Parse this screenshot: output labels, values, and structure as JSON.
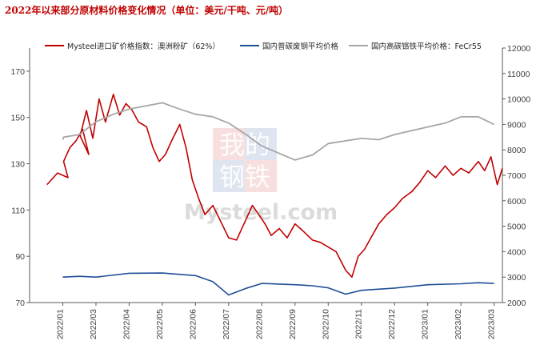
{
  "chart_data": {
    "type": "line",
    "title": "2022年以来部分原材料价格变化情况（单位：美元/干吨、元/吨）",
    "x_ticks": [
      "2022/01",
      "2022/03",
      "2022/04",
      "2022/05",
      "2022/06",
      "2022/07",
      "2022/08",
      "2022/09",
      "2022/10",
      "2022/11",
      "2022/12",
      "2023/01",
      "2023/02",
      "2023/03"
    ],
    "y_left": {
      "range": [
        70,
        180
      ],
      "ticks": [
        70,
        90,
        110,
        130,
        150,
        170
      ]
    },
    "y_right": {
      "range": [
        2000,
        12000
      ],
      "ticks": [
        2000,
        3000,
        4000,
        5000,
        6000,
        7000,
        8000,
        9000,
        10000,
        11000,
        12000
      ]
    },
    "series": [
      {
        "name": "Mysteel进口矿价格指数：澳洲粉矿（62%）",
        "axis": "left",
        "color": "#c00000",
        "points": [
          [
            "2022/01",
            121
          ],
          [
            "2022/01",
            126
          ],
          [
            "2022/01",
            124
          ],
          [
            "2022/02",
            131
          ],
          [
            "2022/02",
            137
          ],
          [
            "2022/02",
            140
          ],
          [
            "2022/02",
            145
          ],
          [
            "2022/02",
            134
          ],
          [
            "2022/03",
            142
          ],
          [
            "2022/03",
            153
          ],
          [
            "2022/03",
            141
          ],
          [
            "2022/03",
            158
          ],
          [
            "2022/03",
            148
          ],
          [
            "2022/04",
            160
          ],
          [
            "2022/04",
            151
          ],
          [
            "2022/04",
            156
          ],
          [
            "2022/04",
            153
          ],
          [
            "2022/04",
            148
          ],
          [
            "2022/05",
            146
          ],
          [
            "2022/05",
            137
          ],
          [
            "2022/05",
            131
          ],
          [
            "2022/05",
            134
          ],
          [
            "2022/05",
            140
          ],
          [
            "2022/06",
            147
          ],
          [
            "2022/06",
            137
          ],
          [
            "2022/06",
            123
          ],
          [
            "2022/06",
            115
          ],
          [
            "2022/06",
            108
          ],
          [
            "2022/07",
            112
          ],
          [
            "2022/07",
            105
          ],
          [
            "2022/07",
            98
          ],
          [
            "2022/07",
            97
          ],
          [
            "2022/08",
            106
          ],
          [
            "2022/08",
            112
          ],
          [
            "2022/08",
            108
          ],
          [
            "2022/08",
            104
          ],
          [
            "2022/08",
            99
          ],
          [
            "2022/09",
            102
          ],
          [
            "2022/09",
            98
          ],
          [
            "2022/09",
            104
          ],
          [
            "2022/09",
            101
          ],
          [
            "2022/10",
            97
          ],
          [
            "2022/10",
            96
          ],
          [
            "2022/10",
            94
          ],
          [
            "2022/10",
            92
          ],
          [
            "2022/11",
            84
          ],
          [
            "2022/11",
            81
          ],
          [
            "2022/11",
            90
          ],
          [
            "2022/11",
            93
          ],
          [
            "2022/11",
            98
          ],
          [
            "2022/12",
            104
          ],
          [
            "2022/12",
            108
          ],
          [
            "2022/12",
            111
          ],
          [
            "2022/12",
            115
          ],
          [
            "2023/01",
            118
          ],
          [
            "2023/01",
            122
          ],
          [
            "2023/01",
            127
          ],
          [
            "2023/01",
            124
          ],
          [
            "2023/02",
            129
          ],
          [
            "2023/02",
            125
          ],
          [
            "2023/02",
            128
          ],
          [
            "2023/02",
            126
          ],
          [
            "2023/03",
            131
          ],
          [
            "2023/03",
            127
          ],
          [
            "2023/03",
            133
          ],
          [
            "2023/03",
            121
          ],
          [
            "2023/03",
            128
          ]
        ]
      },
      {
        "name": "国内普碳废钢平均价格",
        "axis": "right",
        "color": "#1f4e96",
        "points": [
          [
            "2022/01",
            3000
          ],
          [
            "2022/02",
            3030
          ],
          [
            "2022/03",
            3000
          ],
          [
            "2022/04",
            3150
          ],
          [
            "2022/05",
            3160
          ],
          [
            "2022/06",
            3060
          ],
          [
            "2022/07",
            2820
          ],
          [
            "2022/07",
            2300
          ],
          [
            "2022/08",
            2560
          ],
          [
            "2022/08",
            2750
          ],
          [
            "2022/09",
            2700
          ],
          [
            "2022/10",
            2660
          ],
          [
            "2022/10",
            2580
          ],
          [
            "2022/11",
            2330
          ],
          [
            "2022/11",
            2480
          ],
          [
            "2022/12",
            2570
          ],
          [
            "2023/01",
            2700
          ],
          [
            "2023/02",
            2740
          ],
          [
            "2023/03",
            2780
          ],
          [
            "2023/03",
            2750
          ]
        ]
      },
      {
        "name": "国内高碳铬铁平均价格：FeCr55",
        "axis": "right",
        "color": "#a6a6a6",
        "points": [
          [
            "2022/01",
            8400
          ],
          [
            "2022/02",
            8500
          ],
          [
            "2022/02",
            8600
          ],
          [
            "2022/03",
            9100
          ],
          [
            "2022/04",
            9400
          ],
          [
            "2022/04",
            9600
          ],
          [
            "2022/05",
            9850
          ],
          [
            "2022/06",
            9600
          ],
          [
            "2022/06",
            9400
          ],
          [
            "2022/07",
            9300
          ],
          [
            "2022/07",
            9050
          ],
          [
            "2022/08",
            8600
          ],
          [
            "2022/08",
            8150
          ],
          [
            "2022/09",
            7600
          ],
          [
            "2022/10",
            7800
          ],
          [
            "2022/10",
            8250
          ],
          [
            "2022/11",
            8450
          ],
          [
            "2022/12",
            8400
          ],
          [
            "2022/12",
            8600
          ],
          [
            "2023/01",
            8900
          ],
          [
            "2023/02",
            9050
          ],
          [
            "2023/02",
            9300
          ],
          [
            "2023/03",
            9300
          ],
          [
            "2023/03",
            9000
          ]
        ]
      }
    ],
    "legend_position": "top",
    "grid": false,
    "watermark": {
      "text_line1": "我的",
      "text_line2": "钢铁",
      "text_line3": "Mysteel.com"
    }
  }
}
